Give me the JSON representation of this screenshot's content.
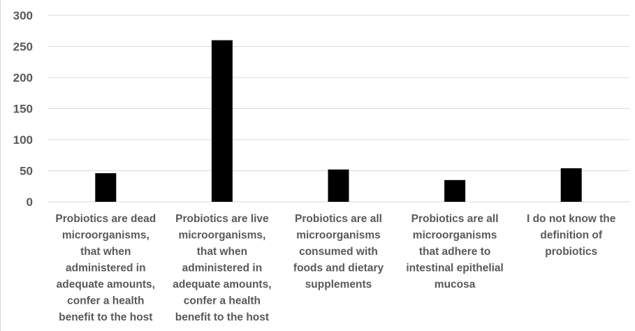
{
  "chart_data": {
    "type": "bar",
    "categories": [
      [
        "Probiotics are dead",
        "microorganisms,",
        "that when",
        "administered in",
        "adequate amounts,",
        "confer a health",
        "benefit to the host"
      ],
      [
        "Probiotics are live",
        "microorganisms,",
        "that when",
        "administered in",
        "adequate amounts,",
        "confer a health",
        "benefit to the host"
      ],
      [
        "Probiotics are all",
        "microorganisms",
        "consumed with",
        "foods and dietary",
        "supplements"
      ],
      [
        "Probiotics are all",
        "microorganisms",
        "that adhere to",
        "intestinal epithelial",
        "mucosa"
      ],
      [
        "I do not know the",
        "definition of",
        "probiotics"
      ]
    ],
    "values": [
      46,
      260,
      52,
      35,
      54
    ],
    "ylim": [
      0,
      300
    ],
    "yticks": [
      0,
      50,
      100,
      150,
      200,
      250,
      300
    ],
    "grid": true,
    "bar_color": "#000000",
    "grid_color": "#d9d9d9",
    "label_color": "#595959"
  }
}
